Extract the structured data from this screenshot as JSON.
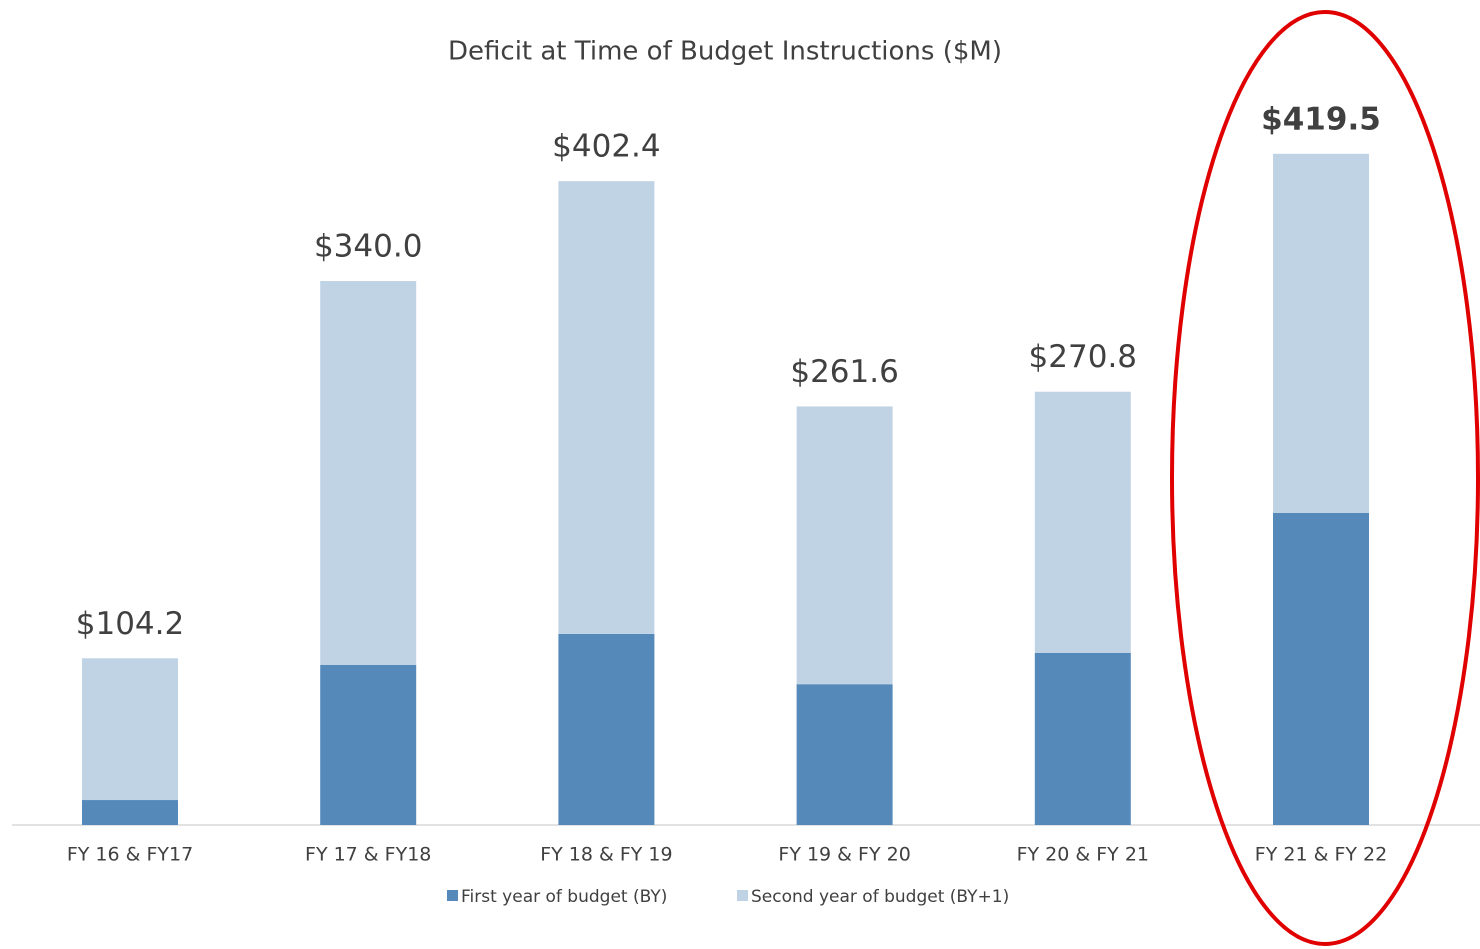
{
  "chart_data": {
    "type": "stacked_bar",
    "title": "Deficit at Time of Budget Instructions ($M)",
    "categories": [
      "FY 16 & FY17",
      "FY 17 & FY18",
      "FY 18 & FY 19",
      "FY 19 & FY 20",
      "FY 20 & FY 21",
      "FY 21 & FY 22"
    ],
    "series": [
      {
        "name": "First year of budget (BY)",
        "color": "#5589b9",
        "values": [
          15.6,
          100,
          119.4,
          88,
          107.5,
          195
        ]
      },
      {
        "name": "Second year of budget (BY+1)",
        "color": "#c0d3e5",
        "values": [
          88.6,
          240,
          283,
          173.6,
          163.3,
          224.5
        ]
      }
    ],
    "totals": [
      104.2,
      340.0,
      402.4,
      261.6,
      270.8,
      419.5
    ],
    "total_labels": [
      "$104.2",
      "$340.0",
      "$402.4",
      "$261.6",
      "$270.8",
      "$419.5"
    ],
    "legend": "bottom"
  }
}
